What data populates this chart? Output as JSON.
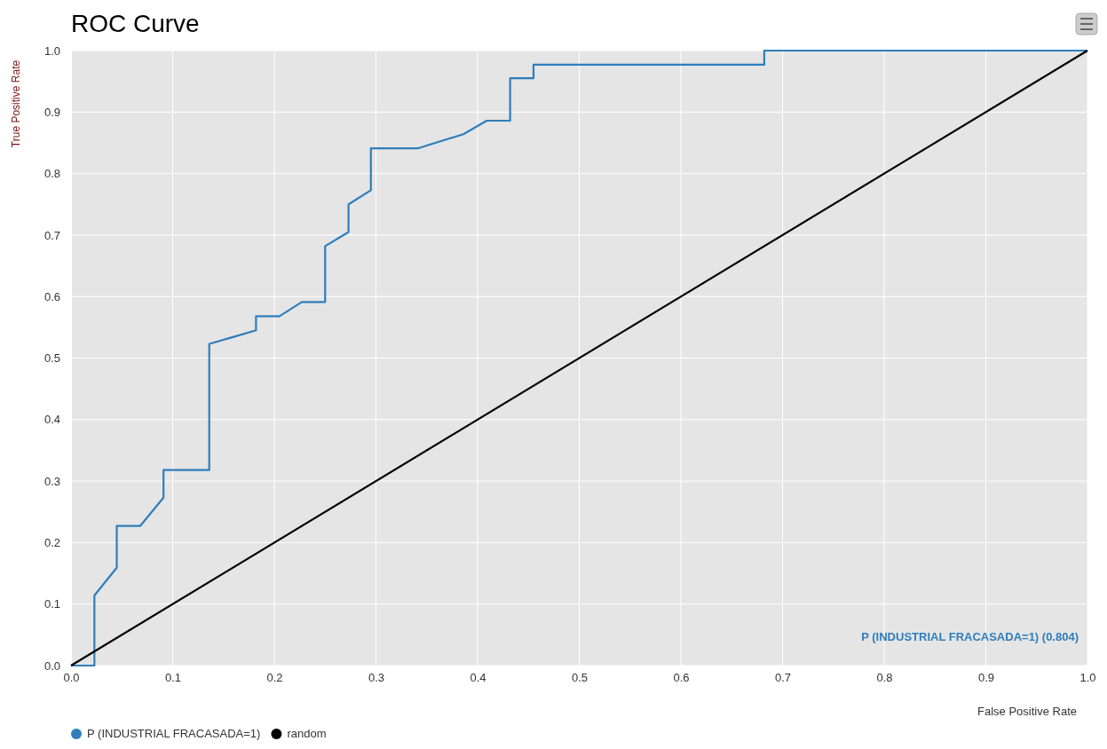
{
  "chart_data": {
    "type": "line",
    "title": "ROC Curve",
    "xlabel": "False Positive Rate",
    "ylabel": "True Positive Rate",
    "xlim": [
      0,
      1
    ],
    "ylim": [
      0,
      1
    ],
    "xticks": [
      {
        "value": 0,
        "label": "0.0"
      },
      0.1,
      0.2,
      0.3,
      0.4,
      0.5,
      0.6,
      0.7,
      0.8,
      0.9,
      {
        "value": 1,
        "label": "1.0"
      }
    ],
    "yticks": [
      {
        "value": 0,
        "label": "0.0"
      },
      0.1,
      0.2,
      0.3,
      0.4,
      0.5,
      0.6,
      0.7,
      0.8,
      0.9,
      {
        "value": 1,
        "label": "1.0"
      }
    ],
    "grid": true,
    "legend": "bottom left",
    "line_style": "solid",
    "annotations": [
      "P (INDUSTRIAL FRACASADA=1) (0.804)"
    ],
    "series": [
      {
        "name": "P (INDUSTRIAL FRACASADA=1)",
        "color": "#2f7ebc",
        "x": [
          0,
          0.023,
          0.023,
          0.045,
          0.045,
          0.068,
          0.091,
          0.091,
          0.136,
          0.136,
          0.182,
          0.182,
          0.205,
          0.227,
          0.25,
          0.25,
          0.273,
          0.273,
          0.295,
          0.295,
          0.341,
          0.386,
          0.409,
          0.432,
          0.432,
          0.455,
          0.455,
          0.682,
          0.682,
          1
        ],
        "values": [
          0,
          0,
          0.114,
          0.159,
          0.227,
          0.227,
          0.273,
          0.318,
          0.318,
          0.523,
          0.545,
          0.568,
          0.568,
          0.591,
          0.591,
          0.682,
          0.705,
          0.75,
          0.773,
          0.841,
          0.841,
          0.864,
          0.886,
          0.886,
          0.955,
          0.955,
          0.977,
          0.977,
          1,
          1
        ]
      },
      {
        "name": "random",
        "color": "#000000",
        "x": [
          0,
          1
        ],
        "values": [
          0,
          1
        ]
      }
    ]
  }
}
